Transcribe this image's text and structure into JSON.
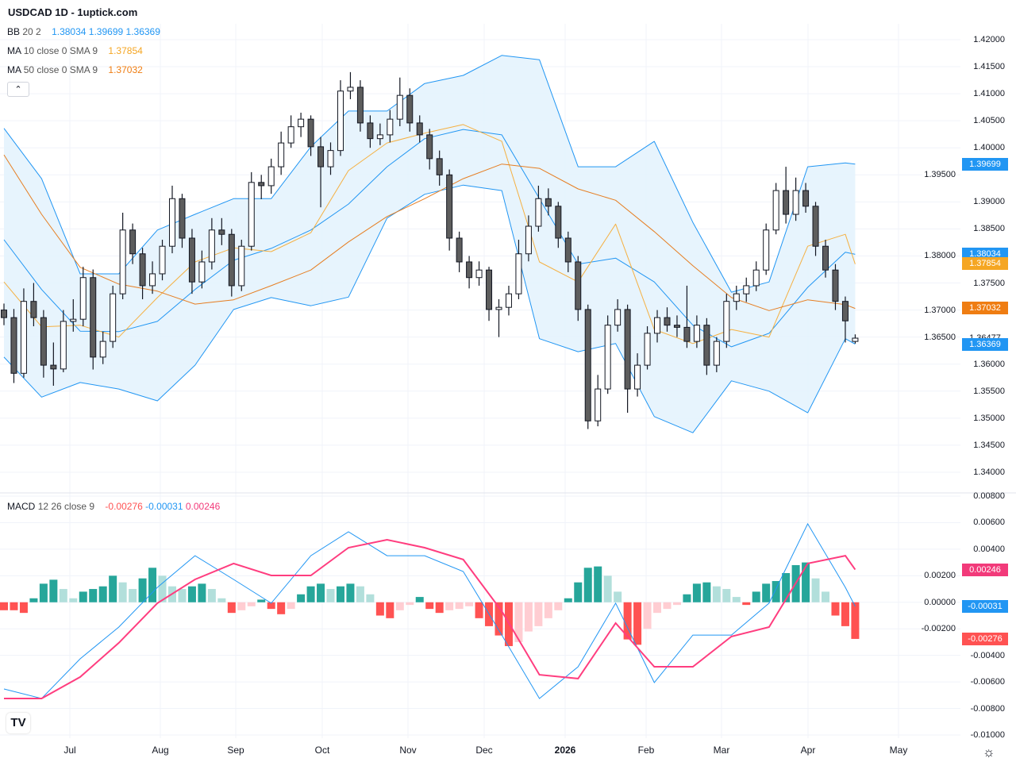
{
  "header": {
    "title": "USDCAD 1D - 1uptick.com"
  },
  "legend": {
    "bb": {
      "label": "BB",
      "params": "20 2",
      "values": [
        "1.38034",
        "1.39699",
        "1.36369"
      ]
    },
    "ma10": {
      "label": "MA",
      "params": "10 close 0 SMA 9",
      "value": "1.37854"
    },
    "ma50": {
      "label": "MA",
      "params": "50 close 0 SMA 9",
      "value": "1.37032"
    },
    "macd": {
      "label": "MACD",
      "params": "12 26 close 9",
      "values": [
        "-0.00276",
        "-0.00031",
        "0.00246"
      ]
    },
    "collapse_icon": "chevron-up"
  },
  "colors": {
    "bb": "#2196f3",
    "bb_fill": "#e3f2fd",
    "ma10": "#f5b041",
    "ma50": "#e67e22",
    "macd": "#2196f3",
    "signal": "#ff3d7f",
    "hist_up": "#26a69a",
    "hist_up_light": "#b2dfdb",
    "hist_dn": "#ff5252",
    "hist_dn_light": "#ffcdd2",
    "bear": "#5d5d5d",
    "bull": "#ffffff"
  },
  "price_axis": {
    "ticks": [
      "1.42000",
      "1.41500",
      "1.41000",
      "1.40500",
      "1.40000",
      "1.39500",
      "1.39000",
      "1.38500",
      "1.38000",
      "1.37500",
      "1.37000",
      "1.36500",
      "1.36000",
      "1.35500",
      "1.35000",
      "1.34500",
      "1.34000"
    ],
    "badges": [
      {
        "text": "1.39699",
        "color": "#2196f3"
      },
      {
        "text": "1.38034",
        "color": "#2196f3"
      },
      {
        "text": "1.37854",
        "color": "#f5a623"
      },
      {
        "text": "1.37032",
        "color": "#ef7d12"
      },
      {
        "text": "1.36477",
        "color": "#ffffff"
      },
      {
        "text": "1.36369",
        "color": "#2196f3"
      }
    ]
  },
  "macd_axis": {
    "ticks": [
      "0.00800",
      "0.00600",
      "0.00400",
      "0.00200",
      "0.00000",
      "-0.00200",
      "-0.00400",
      "-0.00600",
      "-0.00800",
      "-0.01000"
    ],
    "badges": [
      {
        "text": "0.00246",
        "color": "#f23a7a"
      },
      {
        "text": "-0.00031",
        "color": "#2196f3"
      },
      {
        "text": "-0.00276",
        "color": "#ff5252"
      }
    ]
  },
  "time_axis": {
    "labels": [
      "Jul",
      "Aug",
      "Sep",
      "Oct",
      "Nov",
      "Dec",
      "2026",
      "Feb",
      "Mar",
      "Apr",
      "May"
    ]
  },
  "logo": "TV",
  "settings_icon": "gear",
  "chart_data": [
    {
      "type": "candlestick",
      "symbol": "USDCAD",
      "interval": "1D",
      "ylim": [
        1.34,
        1.42
      ],
      "grid": true,
      "candles_ohlc": [
        [
          1.37,
          1.3712,
          1.3672,
          1.3686
        ],
        [
          1.3686,
          1.3702,
          1.3565,
          1.3583
        ],
        [
          1.3583,
          1.374,
          1.3575,
          1.3716
        ],
        [
          1.3716,
          1.375,
          1.367,
          1.3686
        ],
        [
          1.3686,
          1.37,
          1.3575,
          1.3598
        ],
        [
          1.3598,
          1.364,
          1.356,
          1.3591
        ],
        [
          1.3591,
          1.37,
          1.3585,
          1.3679
        ],
        [
          1.3679,
          1.372,
          1.366,
          1.3683
        ],
        [
          1.3683,
          1.378,
          1.367,
          1.376
        ],
        [
          1.376,
          1.3775,
          1.359,
          1.3613
        ],
        [
          1.3613,
          1.366,
          1.36,
          1.3642
        ],
        [
          1.3642,
          1.3745,
          1.363,
          1.373
        ],
        [
          1.373,
          1.388,
          1.372,
          1.3848
        ],
        [
          1.3848,
          1.386,
          1.3785,
          1.3804
        ],
        [
          1.3804,
          1.3815,
          1.372,
          1.3745
        ],
        [
          1.3745,
          1.379,
          1.373,
          1.3767
        ],
        [
          1.3767,
          1.383,
          1.3755,
          1.3818
        ],
        [
          1.3818,
          1.393,
          1.3805,
          1.3906
        ],
        [
          1.3906,
          1.3915,
          1.3815,
          1.3833
        ],
        [
          1.3833,
          1.385,
          1.373,
          1.3752
        ],
        [
          1.3752,
          1.381,
          1.374,
          1.3789
        ],
        [
          1.3789,
          1.387,
          1.3775,
          1.3848
        ],
        [
          1.3848,
          1.387,
          1.382,
          1.384
        ],
        [
          1.384,
          1.385,
          1.3725,
          1.3745
        ],
        [
          1.3745,
          1.383,
          1.3735,
          1.3818
        ],
        [
          1.3818,
          1.3955,
          1.381,
          1.3936
        ],
        [
          1.3936,
          1.395,
          1.3905,
          1.393
        ],
        [
          1.393,
          1.398,
          1.3915,
          1.3965
        ],
        [
          1.3965,
          1.403,
          1.395,
          1.4009
        ],
        [
          1.4009,
          1.406,
          1.4,
          1.4039
        ],
        [
          1.4039,
          1.4065,
          1.402,
          1.4053
        ],
        [
          1.4053,
          1.406,
          1.3985,
          1.4002
        ],
        [
          1.4002,
          1.402,
          1.389,
          1.3965
        ],
        [
          1.3965,
          1.401,
          1.395,
          1.3995
        ],
        [
          1.3995,
          1.4125,
          1.3985,
          1.4105
        ],
        [
          1.4105,
          1.414,
          1.409,
          1.4112
        ],
        [
          1.4112,
          1.4125,
          1.403,
          1.4046
        ],
        [
          1.4046,
          1.406,
          1.4,
          1.4017
        ],
        [
          1.4017,
          1.4045,
          1.4005,
          1.4024
        ],
        [
          1.4024,
          1.407,
          1.401,
          1.4053
        ],
        [
          1.4053,
          1.413,
          1.404,
          1.4097
        ],
        [
          1.4097,
          1.411,
          1.403,
          1.4046
        ],
        [
          1.4046,
          1.406,
          1.401,
          1.4024
        ],
        [
          1.4024,
          1.4035,
          1.396,
          1.398
        ],
        [
          1.398,
          1.3995,
          1.393,
          1.395
        ],
        [
          1.395,
          1.396,
          1.381,
          1.3833
        ],
        [
          1.3833,
          1.3845,
          1.377,
          1.3789
        ],
        [
          1.3789,
          1.38,
          1.374,
          1.376
        ],
        [
          1.376,
          1.379,
          1.3745,
          1.3774
        ],
        [
          1.3774,
          1.378,
          1.368,
          1.3701
        ],
        [
          1.3701,
          1.372,
          1.365,
          1.3705
        ],
        [
          1.3705,
          1.3745,
          1.369,
          1.373
        ],
        [
          1.373,
          1.383,
          1.372,
          1.3804
        ],
        [
          1.3804,
          1.3875,
          1.379,
          1.3855
        ],
        [
          1.3855,
          1.393,
          1.3845,
          1.3906
        ],
        [
          1.3906,
          1.3925,
          1.3875,
          1.3892
        ],
        [
          1.3892,
          1.39,
          1.3815,
          1.3833
        ],
        [
          1.3833,
          1.3845,
          1.377,
          1.3789
        ],
        [
          1.3789,
          1.38,
          1.368,
          1.3701
        ],
        [
          1.3701,
          1.371,
          1.348,
          1.3495
        ],
        [
          1.3495,
          1.358,
          1.3485,
          1.3554
        ],
        [
          1.3554,
          1.369,
          1.3545,
          1.3672
        ],
        [
          1.3672,
          1.372,
          1.366,
          1.3701
        ],
        [
          1.3701,
          1.371,
          1.351,
          1.3554
        ],
        [
          1.3554,
          1.362,
          1.354,
          1.3598
        ],
        [
          1.3598,
          1.367,
          1.359,
          1.3657
        ],
        [
          1.3657,
          1.37,
          1.364,
          1.3686
        ],
        [
          1.3686,
          1.3705,
          1.366,
          1.3672
        ],
        [
          1.3672,
          1.369,
          1.365,
          1.3668
        ],
        [
          1.3668,
          1.3745,
          1.363,
          1.3642
        ],
        [
          1.3642,
          1.369,
          1.363,
          1.3672
        ],
        [
          1.3672,
          1.3685,
          1.358,
          1.3598
        ],
        [
          1.3598,
          1.365,
          1.3585,
          1.3642
        ],
        [
          1.3642,
          1.373,
          1.363,
          1.3716
        ],
        [
          1.3716,
          1.3745,
          1.37,
          1.373
        ],
        [
          1.373,
          1.376,
          1.3715,
          1.3745
        ],
        [
          1.3745,
          1.379,
          1.3735,
          1.3774
        ],
        [
          1.3774,
          1.386,
          1.3765,
          1.3848
        ],
        [
          1.3848,
          1.3935,
          1.384,
          1.3921
        ],
        [
          1.3921,
          1.3965,
          1.386,
          1.3877
        ],
        [
          1.3877,
          1.3945,
          1.3865,
          1.3921
        ],
        [
          1.3921,
          1.3935,
          1.388,
          1.3892
        ],
        [
          1.3892,
          1.39,
          1.38,
          1.3818
        ],
        [
          1.3818,
          1.383,
          1.376,
          1.3774
        ],
        [
          1.3774,
          1.3785,
          1.37,
          1.3716
        ],
        [
          1.3716,
          1.3725,
          1.364,
          1.368
        ],
        [
          1.3642,
          1.3655,
          1.3638,
          1.3648
        ]
      ],
      "indicator_sample_candle_index": [
        0,
        3.8,
        7.7,
        11.6,
        15.5,
        19.3,
        23.2,
        27.0,
        31.0,
        34.8,
        38.7,
        42.5,
        46.4,
        50.3,
        54.1,
        58.0,
        61.8,
        65.7,
        69.6,
        73.5,
        77.3,
        81.2,
        85.0,
        86
      ],
      "bb_upper": [
        1.4036,
        1.3943,
        1.3767,
        1.3767,
        1.3848,
        1.3877,
        1.3906,
        1.3906,
        1.4002,
        1.4068,
        1.4068,
        1.4119,
        1.4134,
        1.4171,
        1.4163,
        1.3965,
        1.3965,
        1.4012,
        1.3862,
        1.3733,
        1.3752,
        1.3965,
        1.3972,
        1.397
      ],
      "bb_basis": [
        1.383,
        1.3738,
        1.3661,
        1.366,
        1.3679,
        1.3738,
        1.3792,
        1.3814,
        1.3848,
        1.3896,
        1.3965,
        1.4017,
        1.4034,
        1.4024,
        1.3906,
        1.3785,
        1.3796,
        1.3752,
        1.3672,
        1.3632,
        1.3657,
        1.3742,
        1.3807,
        1.3803
      ],
      "bb_lower": [
        1.3613,
        1.3539,
        1.3566,
        1.3554,
        1.3532,
        1.3598,
        1.3701,
        1.3723,
        1.3708,
        1.3724,
        1.387,
        1.3914,
        1.3931,
        1.3921,
        1.3647,
        1.3623,
        1.3638,
        1.3503,
        1.3473,
        1.3569,
        1.355,
        1.351,
        1.3647,
        1.3637
      ],
      "ma10": [
        1.3752,
        1.3669,
        1.3672,
        1.365,
        1.3723,
        1.3789,
        1.3815,
        1.3808,
        1.3843,
        1.3958,
        1.4009,
        1.4027,
        1.4043,
        1.4012,
        1.3789,
        1.3752,
        1.3859,
        1.3664,
        1.3638,
        1.3664,
        1.365,
        1.3818,
        1.384,
        1.3785
      ],
      "ma50": [
        1.3987,
        1.3877,
        1.3779,
        1.3748,
        1.3735,
        1.3711,
        1.3719,
        1.3745,
        1.3774,
        1.3826,
        1.3873,
        1.3906,
        1.3943,
        1.397,
        1.3962,
        1.3924,
        1.3903,
        1.3845,
        1.3782,
        1.3723,
        1.3699,
        1.3719,
        1.371,
        1.3703
      ]
    },
    {
      "type": "macd",
      "ylim": [
        -0.01,
        0.008
      ],
      "macd": [
        -0.00653,
        -0.00725,
        -0.00426,
        -0.00187,
        0.00112,
        0.00351,
        0.00172,
        -7e-05,
        0.00351,
        0.00531,
        0.00351,
        0.00351,
        0.00232,
        -0.00247,
        -0.00725,
        -0.00486,
        -7e-05,
        -0.00605,
        -0.00247,
        -0.00247,
        -7e-05,
        0.00591,
        0.00112,
        -0.00031
      ],
      "signal": [
        -0.00725,
        -0.00725,
        -0.00563,
        -0.00306,
        -7e-05,
        0.00172,
        0.00292,
        0.00202,
        0.00202,
        0.00411,
        0.00471,
        0.00411,
        0.00322,
        -0.00067,
        -0.00546,
        -0.00575,
        -0.00157,
        -0.00486,
        -0.00486,
        -0.00258,
        -0.00187,
        0.00292,
        0.00351,
        0.00246
      ],
      "histogram": [
        -0.0006,
        -0.0006,
        -0.0008,
        0.0003,
        0.0014,
        0.0017,
        0.001,
        0.0003,
        0.0008,
        0.001,
        0.0012,
        0.002,
        0.0015,
        0.001,
        0.0018,
        0.0026,
        0.002,
        0.0012,
        0.001,
        0.0012,
        0.0014,
        0.001,
        0.0003,
        -0.0008,
        -0.0006,
        -0.0003,
        0.0002,
        -0.0005,
        -0.0009,
        -0.0005,
        0.0006,
        0.0012,
        0.0014,
        0.001,
        0.0012,
        0.0014,
        0.0012,
        0.0006,
        -0.001,
        -0.0012,
        -0.0006,
        -0.0002,
        0.0004,
        -0.0005,
        -0.0008,
        -0.0006,
        -0.0005,
        -0.0003,
        -0.0012,
        -0.0018,
        -0.0025,
        -0.0033,
        -0.003,
        -0.0022,
        -0.0018,
        -0.0012,
        -0.0006,
        0.0003,
        0.0015,
        0.0026,
        0.0027,
        0.002,
        0.0008,
        -0.0028,
        -0.0032,
        -0.002,
        -0.0008,
        -0.0005,
        -0.0002,
        0.0006,
        0.0014,
        0.0015,
        0.0012,
        0.001,
        0.0004,
        -0.0002,
        0.0008,
        0.0014,
        0.0016,
        0.0022,
        0.0028,
        0.003,
        0.0018,
        0.0008,
        -0.001,
        -0.0018,
        -0.00276
      ]
    }
  ]
}
